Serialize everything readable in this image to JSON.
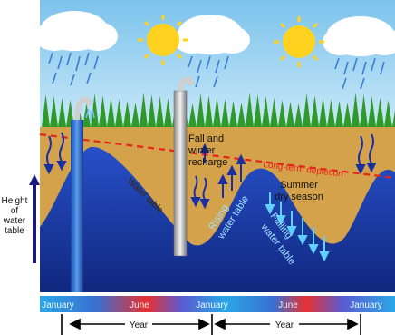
{
  "labels": {
    "height_axis": [
      "Height",
      "of",
      "water",
      "table"
    ],
    "water_table": "Water table",
    "fall_winter_recharge": [
      "Fall and",
      "winter",
      "recharge"
    ],
    "long_term_depletion": "Long-term depletion",
    "summer_dry_season": [
      "Summer",
      "dry season"
    ],
    "rising_water_table": [
      "Rising",
      "water table"
    ],
    "falling_water_table": [
      "Falling",
      "water table"
    ]
  },
  "timeline": {
    "months": [
      "January",
      "June",
      "January",
      "June",
      "January"
    ],
    "periods": [
      "Year",
      "Year"
    ]
  },
  "colors": {
    "sky": "#9fd3f0",
    "soil": "#d4a24a",
    "groundwater": "#1c3fb0",
    "trees": "#2f9a2a",
    "sun": "#ffd21f",
    "depletion_line": "#e8231c",
    "arrows": "#1a2fa0"
  }
}
